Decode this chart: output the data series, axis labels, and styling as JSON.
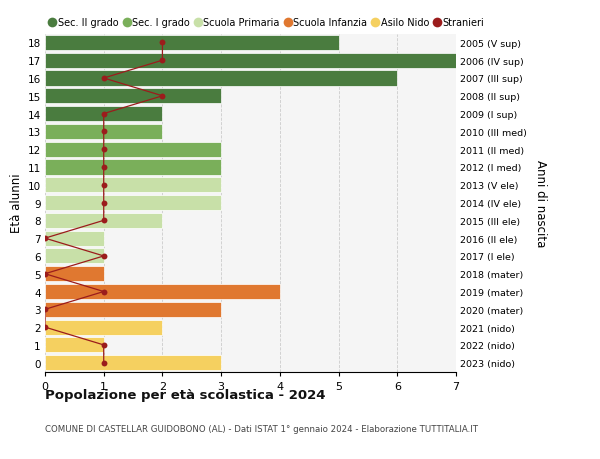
{
  "ages": [
    18,
    17,
    16,
    15,
    14,
    13,
    12,
    11,
    10,
    9,
    8,
    7,
    6,
    5,
    4,
    3,
    2,
    1,
    0
  ],
  "years": [
    "2005 (V sup)",
    "2006 (IV sup)",
    "2007 (III sup)",
    "2008 (II sup)",
    "2009 (I sup)",
    "2010 (III med)",
    "2011 (II med)",
    "2012 (I med)",
    "2013 (V ele)",
    "2014 (IV ele)",
    "2015 (III ele)",
    "2016 (II ele)",
    "2017 (I ele)",
    "2018 (mater)",
    "2019 (mater)",
    "2020 (mater)",
    "2021 (nido)",
    "2022 (nido)",
    "2023 (nido)"
  ],
  "bar_values": [
    5,
    7,
    6,
    3,
    2,
    2,
    3,
    3,
    3,
    3,
    2,
    1,
    1,
    1,
    4,
    3,
    2,
    1,
    3
  ],
  "bar_colors": [
    "#4a7c3f",
    "#4a7c3f",
    "#4a7c3f",
    "#4a7c3f",
    "#4a7c3f",
    "#7aaf5a",
    "#7aaf5a",
    "#7aaf5a",
    "#c8e0a8",
    "#c8e0a8",
    "#c8e0a8",
    "#c8e0a8",
    "#c8e0a8",
    "#e07830",
    "#e07830",
    "#e07830",
    "#f5d060",
    "#f5d060",
    "#f5d060"
  ],
  "stranieri_values": [
    2,
    2,
    1,
    2,
    1,
    1,
    1,
    1,
    1,
    1,
    1,
    0,
    1,
    0,
    1,
    0,
    0,
    1,
    1
  ],
  "stranieri_color": "#9b1c1c",
  "legend_labels": [
    "Sec. II grado",
    "Sec. I grado",
    "Scuola Primaria",
    "Scuola Infanzia",
    "Asilo Nido",
    "Stranieri"
  ],
  "legend_colors": [
    "#4a7c3f",
    "#7aaf5a",
    "#c8e0a8",
    "#e07830",
    "#f5d060",
    "#9b1c1c"
  ],
  "ylabel_left": "Età alunni",
  "ylabel_right": "Anni di nascita",
  "xlim": [
    0,
    7
  ],
  "xticks": [
    0,
    1,
    2,
    3,
    4,
    5,
    6,
    7
  ],
  "title": "Popolazione per età scolastica - 2024",
  "subtitle": "COMUNE DI CASTELLAR GUIDOBONO (AL) - Dati ISTAT 1° gennaio 2024 - Elaborazione TUTTITALIA.IT",
  "bg_color": "#ffffff",
  "bar_height": 0.85,
  "grid_color": "#cccccc"
}
